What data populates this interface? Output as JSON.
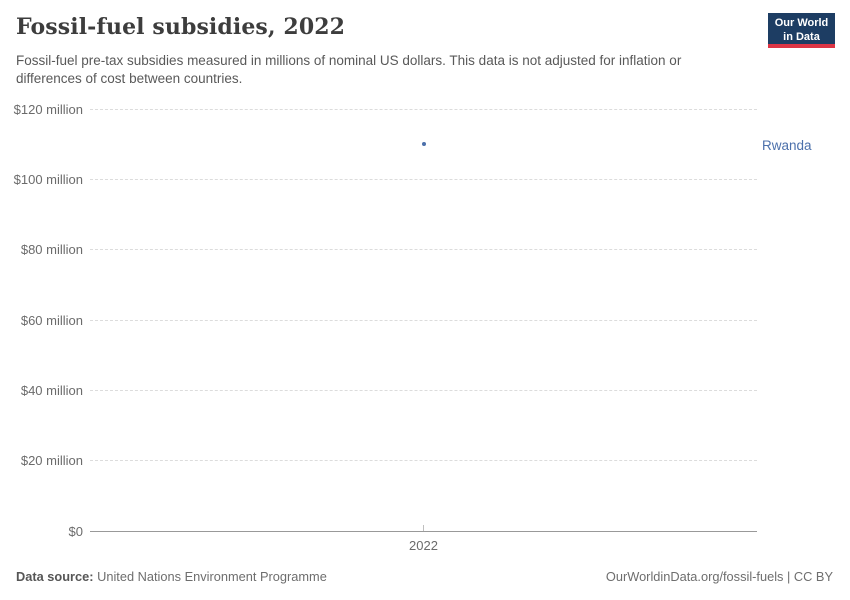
{
  "header": {
    "title": "Fossil-fuel subsidies, 2022",
    "subtitle": "Fossil-fuel pre-tax subsidies measured in millions of nominal US dollars. This data is not adjusted for inflation or differences of cost between countries.",
    "logo": {
      "line1": "Our World",
      "line2": "in Data",
      "bg_color": "#1d3d63",
      "accent_color": "#dc3545"
    }
  },
  "chart_data": {
    "type": "scatter",
    "title": "Fossil-fuel subsidies, 2022",
    "units": "millions of nominal US dollars",
    "x": [
      2022
    ],
    "series": [
      {
        "name": "Rwanda",
        "values": [
          110
        ],
        "color": "#4c70ab"
      }
    ],
    "ylim": [
      0,
      120
    ],
    "y_ticks": [
      {
        "value": 0,
        "label": "$0"
      },
      {
        "value": 20,
        "label": "$20 million"
      },
      {
        "value": 40,
        "label": "$40 million"
      },
      {
        "value": 60,
        "label": "$60 million"
      },
      {
        "value": 80,
        "label": "$80 million"
      },
      {
        "value": 100,
        "label": "$100 million"
      },
      {
        "value": 120,
        "label": "$120 million"
      }
    ],
    "x_ticks": [
      {
        "value": 2022,
        "label": "2022"
      }
    ],
    "grid": "horizontal-dashed",
    "legend_position": "right-entity-label"
  },
  "footer": {
    "source_label": "Data source:",
    "source_value": " United Nations Environment Programme",
    "credit": "OurWorldinData.org/fossil-fuels | CC BY"
  }
}
